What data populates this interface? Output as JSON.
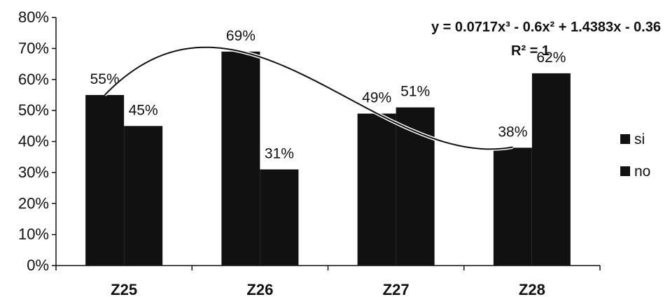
{
  "chart_data": {
    "type": "bar",
    "categories": [
      "Z25",
      "Z26",
      "Z27",
      "Z28"
    ],
    "series": [
      {
        "name": "si",
        "values": [
          0.55,
          0.69,
          0.49,
          0.38
        ],
        "labels": [
          "55%",
          "69%",
          "49%",
          "38%"
        ],
        "color": "#111111"
      },
      {
        "name": "no",
        "values": [
          0.45,
          0.31,
          0.51,
          0.62
        ],
        "labels": [
          "45%",
          "31%",
          "51%",
          "62%"
        ],
        "color": "#111111"
      }
    ],
    "ylim": [
      0,
      0.8
    ],
    "yticks": [
      0,
      0.1,
      0.2,
      0.3,
      0.4,
      0.5,
      0.6,
      0.7,
      0.8
    ],
    "ytick_labels": [
      "0%",
      "10%",
      "20%",
      "30%",
      "40%",
      "50%",
      "60%",
      "70%",
      "80%"
    ],
    "grid": false,
    "legend_position": "right",
    "trendline": {
      "type": "polynomial",
      "order": 3,
      "coefficients": [
        0.0717,
        -0.6,
        1.4383,
        -0.36
      ],
      "equation": "y = 0.0717x³ - 0.6x² + 1.4383x - 0.36",
      "r_squared": "R² = 1"
    }
  }
}
